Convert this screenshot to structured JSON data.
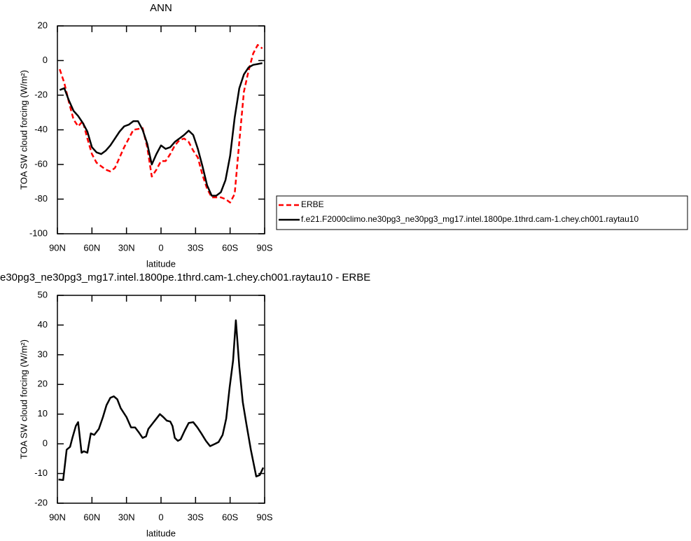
{
  "chart_data": [
    {
      "type": "line",
      "title": "ANN",
      "x_label": "latitude",
      "y_label": "TOA SW cloud forcing (W/m²)",
      "x": [
        88,
        84,
        80,
        76,
        72,
        68,
        64,
        60,
        56,
        52,
        48,
        44,
        40,
        36,
        32,
        28,
        24,
        20,
        16,
        12,
        8,
        4,
        0,
        -4,
        -8,
        -12,
        -16,
        -20,
        -24,
        -28,
        -32,
        -36,
        -40,
        -44,
        -48,
        -52,
        -56,
        -60,
        -64,
        -68,
        -72,
        -76,
        -80,
        -84,
        -88
      ],
      "series": [
        {
          "name": "ERBE",
          "color": "#ff0000",
          "dashed": true,
          "values": [
            -5,
            -13,
            -24,
            -34,
            -38,
            -35,
            -45,
            -54,
            -59,
            -61,
            -63,
            -64,
            -62,
            -56,
            -50,
            -45,
            -40,
            -39.5,
            -39,
            -50,
            -67,
            -63,
            -58,
            -58,
            -54,
            -49,
            -46,
            -45,
            -47,
            -52,
            -56,
            -66,
            -74,
            -79,
            -79,
            -79,
            -80,
            -82,
            -77,
            -47,
            -18,
            -6,
            4,
            9,
            7
          ]
        },
        {
          "name": "f.e21.F2000climo.ne30pg3_ne30pg3_mg17.intel.1800pe.1thrd.cam-1.chey.ch001.raytau10",
          "color": "#000000",
          "dashed": false,
          "values": [
            -17,
            -16,
            -23,
            -29,
            -32,
            -36,
            -41,
            -50,
            -53,
            -54,
            -52,
            -49,
            -45,
            -41,
            -38,
            -37,
            -35,
            -35,
            -40,
            -48,
            -60,
            -54,
            -49,
            -51,
            -50,
            -47,
            -45,
            -43,
            -40.5,
            -43,
            -51,
            -61,
            -72,
            -78,
            -78,
            -76,
            -69,
            -55,
            -33,
            -16,
            -8,
            -4,
            -2.5,
            -2,
            -1.5
          ]
        }
      ],
      "xlim": [
        90,
        -90
      ],
      "xticks": [
        {
          "value": 90,
          "label": "90N"
        },
        {
          "value": 60,
          "label": "60N"
        },
        {
          "value": 30,
          "label": "30N"
        },
        0,
        {
          "value": -30,
          "label": "30S"
        },
        {
          "value": -60,
          "label": "60S"
        },
        {
          "value": -90,
          "label": "90S"
        }
      ],
      "ylim": [
        -100,
        20
      ],
      "yticks": [
        -100,
        -80,
        -60,
        -40,
        -20,
        0,
        20
      ],
      "legend": "right"
    },
    {
      "type": "line",
      "title": "e30pg3_ne30pg3_mg17.intel.1800pe.1thrd.cam-1.chey.ch001.raytau10 - ERBE",
      "x_label": "latitude",
      "y_label": "TOA SW cloud forcing (W/m²)",
      "x": [
        89,
        85,
        82,
        79,
        77,
        74,
        72,
        69,
        67,
        64,
        61,
        58,
        54,
        50.5,
        47.4,
        44,
        41,
        38,
        35,
        30,
        26,
        22.5,
        19.5,
        16,
        13,
        11,
        7,
        5,
        1,
        -2,
        -5,
        -8,
        -10,
        -12,
        -14.6,
        -17,
        -20.7,
        -24,
        -28,
        -31.6,
        -35,
        -39,
        -42.6,
        -47,
        -50,
        -53.5,
        -56.6,
        -59.6,
        -62.6,
        -65,
        -68,
        -71,
        -74,
        -78,
        -82.7,
        -85.8,
        -88.8
      ],
      "series": [
        {
          "color": "#000000",
          "dashed": false,
          "values": [
            -12,
            -12.2,
            -2,
            -1,
            2,
            6,
            7.3,
            -3,
            -2.5,
            -3,
            3.5,
            3,
            5,
            9,
            13,
            15.5,
            16,
            15,
            12,
            9,
            5.5,
            5.5,
            4,
            2,
            2.5,
            5,
            7,
            8,
            10,
            9,
            7.8,
            7.5,
            6,
            2,
            1,
            1.5,
            4.5,
            7,
            7.3,
            5.5,
            3.5,
            1,
            -0.8,
            0,
            0.6,
            3,
            8.5,
            19,
            28,
            41.6,
            26,
            14,
            7,
            -2,
            -11,
            -10.5,
            -8
          ]
        }
      ],
      "xlim": [
        90,
        -90
      ],
      "xticks": [
        {
          "value": 90,
          "label": "90N"
        },
        {
          "value": 60,
          "label": "60N"
        },
        {
          "value": 30,
          "label": "30N"
        },
        0,
        {
          "value": -30,
          "label": "30S"
        },
        {
          "value": -60,
          "label": "60S"
        },
        {
          "value": -90,
          "label": "90S"
        }
      ],
      "ylim": [
        -20,
        50
      ],
      "yticks": [
        -20,
        -10,
        0,
        10,
        20,
        30,
        40,
        50
      ]
    }
  ]
}
